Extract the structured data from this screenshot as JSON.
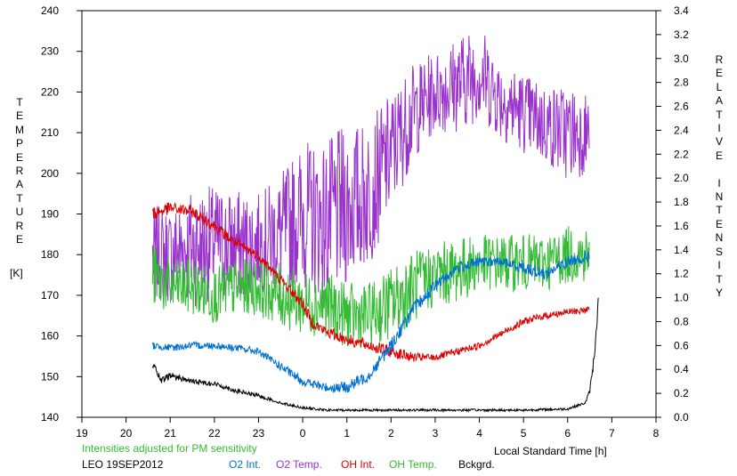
{
  "chart_data": {
    "type": "line",
    "left_axis": {
      "label": "TEMPERATURE",
      "unit": "[K]",
      "range": [
        140,
        240
      ],
      "ticks": [
        140,
        150,
        160,
        170,
        180,
        190,
        200,
        210,
        220,
        230,
        240
      ]
    },
    "right_axis": {
      "label": "RELATIVE INTENSITY",
      "range": [
        0,
        3.4
      ],
      "ticks": [
        "0.0",
        "0.2",
        "0.4",
        "0.6",
        "0.8",
        "1.0",
        "1.2",
        "1.4",
        "1.6",
        "1.8",
        "2.0",
        "2.2",
        "2.4",
        "2.6",
        "2.8",
        "3.0",
        "3.2",
        "3.4"
      ]
    },
    "x_axis": {
      "label": "Local Standard Time [h]",
      "ticks": [
        "19",
        "20",
        "21",
        "22",
        "23",
        "0",
        "1",
        "2",
        "3",
        "4",
        "5",
        "6",
        "7",
        "8"
      ]
    },
    "note": "Intensities adjusted for PM sensitivity",
    "station": "LEO 19SEP2012",
    "legend": [
      {
        "name": "O2 Int.",
        "color": "#0070d0"
      },
      {
        "name": "O2 Temp.",
        "color": "#9933cc"
      },
      {
        "name": "OH Int.",
        "color": "#dd0000"
      },
      {
        "name": "OH Temp.",
        "color": "#33bb33"
      },
      {
        "name": "Bckgrd.",
        "color": "#000000"
      }
    ],
    "series": [
      {
        "name": "O2 Temp.",
        "axis": "left",
        "color": "#9933cc",
        "x": [
          20.6,
          21.0,
          21.5,
          22.0,
          22.5,
          23.0,
          23.5,
          24.0,
          24.5,
          25.0,
          25.5,
          26.0,
          26.5,
          27.0,
          27.5,
          28.0,
          28.5,
          29.0,
          29.5,
          30.0,
          30.5
        ],
        "y": [
          180,
          180,
          182,
          183,
          182,
          183,
          185,
          190,
          188,
          192,
          195,
          205,
          215,
          220,
          222,
          225,
          218,
          215,
          212,
          210,
          210
        ],
        "amplitude": [
          12,
          12,
          15,
          14,
          14,
          12,
          15,
          18,
          20,
          20,
          18,
          15,
          12,
          10,
          12,
          12,
          10,
          10,
          10,
          12,
          10
        ]
      },
      {
        "name": "OH Temp.",
        "axis": "left",
        "color": "#33bb33",
        "x": [
          20.6,
          21.0,
          21.5,
          22.0,
          22.5,
          23.0,
          23.5,
          24.0,
          24.5,
          25.0,
          25.5,
          26.0,
          26.5,
          27.0,
          27.5,
          28.0,
          28.5,
          29.0,
          29.5,
          30.0,
          30.5
        ],
        "y": [
          175,
          172,
          172,
          170,
          172,
          172,
          170,
          168,
          168,
          165,
          165,
          168,
          172,
          175,
          176,
          178,
          178,
          178,
          178,
          180,
          180
        ],
        "amplitude": [
          8,
          7,
          7,
          7,
          7,
          7,
          8,
          8,
          8,
          8,
          8,
          9,
          9,
          8,
          8,
          7,
          7,
          7,
          7,
          7,
          7
        ]
      },
      {
        "name": "OH Int.",
        "axis": "right",
        "color": "#dd0000",
        "x": [
          20.6,
          21.0,
          21.5,
          22.0,
          22.5,
          23.0,
          24.0,
          24.2,
          24.5,
          25.0,
          25.5,
          26.0,
          26.5,
          27.0,
          27.5,
          28.0,
          28.5,
          29.0,
          29.5,
          30.0,
          30.5
        ],
        "y": [
          1.7,
          1.75,
          1.72,
          1.6,
          1.45,
          1.35,
          0.95,
          0.8,
          0.72,
          0.65,
          0.6,
          0.55,
          0.5,
          0.5,
          0.55,
          0.6,
          0.7,
          0.8,
          0.85,
          0.88,
          0.9
        ],
        "amplitude": [
          0.06,
          0.05,
          0.05,
          0.05,
          0.05,
          0.04,
          0.05,
          0.05,
          0.05,
          0.05,
          0.05,
          0.05,
          0.04,
          0.03,
          0.03,
          0.03,
          0.03,
          0.03,
          0.03,
          0.03,
          0.03
        ]
      },
      {
        "name": "O2 Int.",
        "axis": "right",
        "color": "#0070d0",
        "x": [
          20.6,
          21.0,
          21.5,
          22.0,
          22.5,
          23.0,
          24.0,
          24.5,
          25.0,
          25.5,
          26.0,
          26.5,
          27.0,
          27.5,
          28.0,
          28.5,
          29.0,
          29.5,
          30.0,
          30.5
        ],
        "y": [
          0.6,
          0.58,
          0.6,
          0.6,
          0.58,
          0.55,
          0.3,
          0.25,
          0.25,
          0.35,
          0.6,
          0.9,
          1.1,
          1.25,
          1.3,
          1.3,
          1.25,
          1.2,
          1.3,
          1.35
        ],
        "amplitude": [
          0.03,
          0.03,
          0.03,
          0.03,
          0.03,
          0.03,
          0.04,
          0.04,
          0.05,
          0.05,
          0.06,
          0.06,
          0.05,
          0.05,
          0.04,
          0.04,
          0.05,
          0.05,
          0.05,
          0.05
        ]
      },
      {
        "name": "Bckgrd.",
        "axis": "right",
        "color": "#000000",
        "x": [
          20.6,
          20.8,
          21.0,
          21.5,
          22.0,
          22.5,
          23.0,
          23.5,
          24.0,
          24.5,
          25.0,
          26.0,
          27.0,
          28.0,
          29.0,
          30.0,
          30.4,
          30.5,
          30.6,
          30.7
        ],
        "y": [
          0.45,
          0.3,
          0.35,
          0.3,
          0.28,
          0.22,
          0.18,
          0.12,
          0.08,
          0.06,
          0.06,
          0.06,
          0.06,
          0.06,
          0.06,
          0.07,
          0.12,
          0.22,
          0.5,
          1.0
        ],
        "amplitude": [
          0.03,
          0.03,
          0.03,
          0.02,
          0.02,
          0.02,
          0.015,
          0.01,
          0.01,
          0.01,
          0.01,
          0.01,
          0.01,
          0.01,
          0.01,
          0.01,
          0.01,
          0.02,
          0.05,
          0.05
        ]
      }
    ]
  }
}
